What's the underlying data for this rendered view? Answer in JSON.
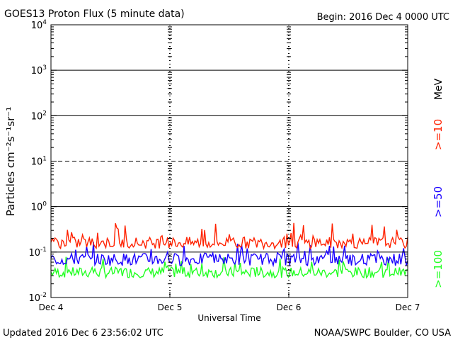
{
  "header": {
    "title": "GOES13 Proton Flux (5 minute data)",
    "begin": "Begin: 2016 Dec 4 0000 UTC"
  },
  "footer": {
    "updated": "Updated 2016 Dec  6 23:56:02 UTC",
    "source": "NOAA/SWPC Boulder, CO USA"
  },
  "colors": {
    "red": "#ff2200",
    "blue": "#1a00ff",
    "green": "#22ff22",
    "axis": "#000000"
  },
  "chart_data": {
    "type": "line",
    "title": "GOES13 Proton Flux (5 minute data)",
    "xlabel": "Universal Time",
    "ylabel": "Particles cm⁻²s⁻¹sr⁻¹",
    "yscale": "log",
    "ylim": [
      0.01,
      10000
    ],
    "y_ticks": [
      {
        "base": "10",
        "exp": "4"
      },
      {
        "base": "10",
        "exp": "3"
      },
      {
        "base": "10",
        "exp": "2"
      },
      {
        "base": "10",
        "exp": "1"
      },
      {
        "base": "10",
        "exp": "0"
      },
      {
        "base": "10",
        "exp": "-1"
      },
      {
        "base": "10",
        "exp": "-2"
      }
    ],
    "x_ticks": [
      "Dec 4",
      "Dec 5",
      "Dec 6",
      "Dec 7"
    ],
    "threshold_lines": [
      {
        "value": 1000,
        "style": "solid"
      },
      {
        "value": 100,
        "style": "solid"
      },
      {
        "value": 10,
        "style": "dashed"
      },
      {
        "value": 1,
        "style": "solid"
      },
      {
        "value": 0.1,
        "style": "solid"
      }
    ],
    "energy_unit": "MeV",
    "series": [
      {
        "name": ">=10",
        "color": "#ff2200",
        "typical": 0.15,
        "min": 0.11,
        "max": 0.45
      },
      {
        "name": ">=50",
        "color": "#1a00ff",
        "typical": 0.07,
        "min": 0.045,
        "max": 0.17
      },
      {
        "name": ">=100",
        "color": "#22ff22",
        "typical": 0.035,
        "min": 0.025,
        "max": 0.08
      }
    ]
  }
}
